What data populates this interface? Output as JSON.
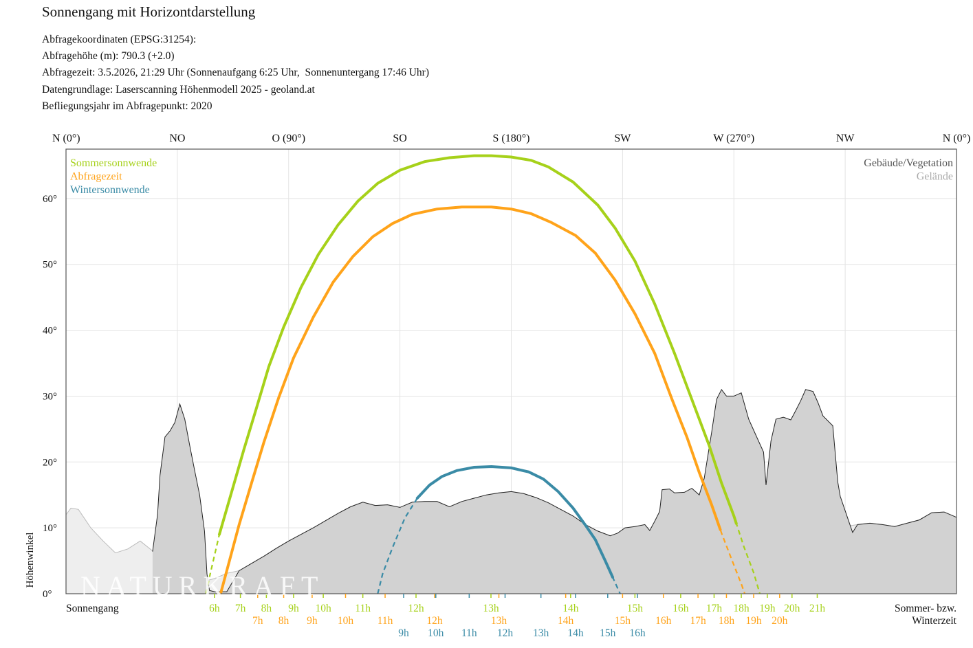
{
  "header": {
    "title": "Sonnengang mit Horizontdarstellung",
    "info_lines": [
      "Abfragekoordinaten (EPSG:31254):",
      "Abfragehöhe (m): 790.3 (+2.0)",
      "Abfragezeit: 3.5.2026, 21:29 Uhr (Sonnenaufgang 6:25 Uhr,  Sonnenuntergang 17:46 Uhr)",
      "Datengrundlage: Laserscanning Höhenmodell 2025 - geoland.at",
      "Befliegungsjahr im Abfragepunkt: 2020"
    ]
  },
  "watermark": "NATURKRAFT",
  "chart_data": {
    "type": "line",
    "xlim": [
      0,
      360
    ],
    "ylim": [
      0,
      67.5
    ],
    "ylabel": "Höhenwinkel",
    "direction_labels": [
      {
        "az": 0,
        "label": "N (0°)"
      },
      {
        "az": 45,
        "label": "NO"
      },
      {
        "az": 90,
        "label": "O (90°)"
      },
      {
        "az": 135,
        "label": "SO"
      },
      {
        "az": 180,
        "label": "S (180°)"
      },
      {
        "az": 225,
        "label": "SW"
      },
      {
        "az": 270,
        "label": "W (270°)"
      },
      {
        "az": 315,
        "label": "NW"
      },
      {
        "az": 360,
        "label": "N (0°)"
      }
    ],
    "y_ticks": [
      {
        "v": 0,
        "label": "0°"
      },
      {
        "v": 10,
        "label": "10°"
      },
      {
        "v": 20,
        "label": "20°"
      },
      {
        "v": 30,
        "label": "30°"
      },
      {
        "v": 40,
        "label": "40°"
      },
      {
        "v": 50,
        "label": "50°"
      },
      {
        "v": 60,
        "label": "60°"
      }
    ],
    "legend_left": [
      {
        "label": "Sommersonnwende",
        "color": "#a6d11a"
      },
      {
        "label": "Abfragezeit",
        "color": "#ffa31a"
      },
      {
        "label": "Wintersonnwende",
        "color": "#3a8ba6"
      }
    ],
    "legend_right": [
      {
        "label": "Gebäude/Vegetation",
        "color": "#555555"
      },
      {
        "label": "Gelände",
        "color": "#aaaaaa"
      }
    ],
    "bottom_left_label": "Sonnengang",
    "bottom_right_label": [
      "Sommer- bzw.",
      "Winterzeit"
    ],
    "terrain": [
      [
        0,
        12
      ],
      [
        2,
        13
      ],
      [
        5,
        12.8
      ],
      [
        10,
        10
      ],
      [
        15,
        8
      ],
      [
        20,
        6.2
      ],
      [
        25,
        6.8
      ],
      [
        30,
        8
      ],
      [
        35,
        6.5
      ],
      [
        40,
        4
      ],
      [
        45,
        2.8
      ],
      [
        50,
        2
      ],
      [
        55,
        1.8
      ],
      [
        60,
        2.3
      ],
      [
        65,
        3.1
      ],
      [
        70,
        3.5
      ],
      [
        75,
        4.6
      ],
      [
        80,
        5.7
      ],
      [
        85,
        6.9
      ],
      [
        90,
        8
      ],
      [
        95,
        9
      ],
      [
        100,
        10
      ],
      [
        105,
        11.1
      ],
      [
        110,
        12.2
      ],
      [
        115,
        13.2
      ],
      [
        120,
        13.9
      ],
      [
        125,
        13.4
      ],
      [
        130,
        13.5
      ],
      [
        135,
        13.1
      ],
      [
        140,
        13.9
      ],
      [
        145,
        14
      ],
      [
        150,
        14
      ],
      [
        155,
        13.2
      ],
      [
        160,
        14
      ],
      [
        165,
        14.5
      ],
      [
        170,
        15
      ],
      [
        175,
        15.3
      ],
      [
        180,
        15.5
      ],
      [
        185,
        15.2
      ],
      [
        190,
        14.6
      ],
      [
        195,
        13.8
      ],
      [
        200,
        12.8
      ],
      [
        205,
        11.8
      ],
      [
        210,
        10.5
      ],
      [
        215,
        9.5
      ],
      [
        220,
        8.8
      ],
      [
        225,
        8
      ],
      [
        230,
        7.2
      ],
      [
        235,
        6.5
      ],
      [
        240,
        6
      ],
      [
        245,
        5.6
      ],
      [
        250,
        5.2
      ],
      [
        255,
        4.8
      ],
      [
        260,
        4.4
      ],
      [
        265,
        4
      ],
      [
        270,
        3.7
      ],
      [
        275,
        3.3
      ],
      [
        280,
        4.8
      ],
      [
        285,
        6.2
      ],
      [
        290,
        7.3
      ],
      [
        295,
        8.1
      ],
      [
        300,
        8.9
      ],
      [
        305,
        9.4
      ],
      [
        310,
        9.9
      ],
      [
        315,
        10.2
      ],
      [
        320,
        10.5
      ],
      [
        325,
        10.7
      ],
      [
        330,
        10.5
      ],
      [
        335,
        10.2
      ],
      [
        340,
        10.7
      ],
      [
        345,
        11.2
      ],
      [
        350,
        12.3
      ],
      [
        355,
        12.4
      ],
      [
        360,
        11.6
      ]
    ],
    "buildings": [
      [
        35,
        6.4
      ],
      [
        37,
        12
      ],
      [
        38,
        18
      ],
      [
        40,
        23.8
      ],
      [
        42,
        24.7
      ],
      [
        44,
        26
      ],
      [
        46,
        28.8
      ],
      [
        48,
        26.5
      ],
      [
        50,
        22.5
      ],
      [
        52,
        18.7
      ],
      [
        54,
        15
      ],
      [
        56,
        9.5
      ],
      [
        57,
        3
      ],
      [
        58,
        0.5
      ],
      [
        60,
        0.3
      ],
      [
        65,
        0.3
      ],
      [
        70,
        3.5
      ],
      [
        75,
        4.6
      ],
      [
        80,
        5.7
      ],
      [
        85,
        6.9
      ],
      [
        90,
        8
      ],
      [
        95,
        9
      ],
      [
        100,
        10
      ],
      [
        105,
        11.1
      ],
      [
        110,
        12.2
      ],
      [
        115,
        13.2
      ],
      [
        120,
        13.9
      ],
      [
        125,
        13.4
      ],
      [
        130,
        13.5
      ],
      [
        135,
        13.1
      ],
      [
        140,
        13.9
      ],
      [
        145,
        14
      ],
      [
        150,
        14
      ],
      [
        155,
        13.2
      ],
      [
        160,
        14
      ],
      [
        165,
        14.5
      ],
      [
        170,
        15
      ],
      [
        175,
        15.3
      ],
      [
        180,
        15.5
      ],
      [
        185,
        15.2
      ],
      [
        190,
        14.6
      ],
      [
        195,
        13.8
      ],
      [
        200,
        12.8
      ],
      [
        205,
        11.8
      ],
      [
        210,
        10.5
      ],
      [
        215,
        9.5
      ],
      [
        220,
        8.8
      ],
      [
        223,
        9.2
      ],
      [
        226,
        10
      ],
      [
        230,
        10.2
      ],
      [
        234,
        10.5
      ],
      [
        236,
        9.6
      ],
      [
        238,
        11
      ],
      [
        240,
        12.5
      ],
      [
        241,
        15.8
      ],
      [
        244,
        15.9
      ],
      [
        246,
        15.3
      ],
      [
        250,
        15.4
      ],
      [
        253,
        16
      ],
      [
        256,
        15
      ],
      [
        258,
        17.5
      ],
      [
        261,
        24.5
      ],
      [
        263,
        29.5
      ],
      [
        265,
        31
      ],
      [
        267,
        30
      ],
      [
        270,
        30
      ],
      [
        273,
        30.5
      ],
      [
        276,
        26.5
      ],
      [
        279,
        24
      ],
      [
        282,
        21.5
      ],
      [
        283,
        16.5
      ],
      [
        285,
        23.2
      ],
      [
        287,
        26.5
      ],
      [
        290,
        26.8
      ],
      [
        293,
        26.4
      ],
      [
        295,
        27.8
      ],
      [
        297,
        29.3
      ],
      [
        299,
        31
      ],
      [
        302,
        30.7
      ],
      [
        304,
        29
      ],
      [
        306,
        27
      ],
      [
        310,
        25.5
      ],
      [
        312,
        17
      ],
      [
        313,
        14.8
      ],
      [
        316,
        11.5
      ],
      [
        318,
        9.3
      ],
      [
        320,
        10.5
      ],
      [
        325,
        10.7
      ],
      [
        330,
        10.5
      ],
      [
        335,
        10.2
      ],
      [
        340,
        10.7
      ],
      [
        345,
        11.2
      ],
      [
        350,
        12.3
      ],
      [
        355,
        12.4
      ],
      [
        360,
        11.6
      ]
    ],
    "series": [
      {
        "name": "Sommersonnwende",
        "color": "#a6d11a",
        "points": [
          [
            56.6,
            0
          ],
          [
            58,
            2.5
          ],
          [
            62,
            9
          ],
          [
            67,
            15.5
          ],
          [
            72,
            22
          ],
          [
            77,
            28.2
          ],
          [
            82,
            34.5
          ],
          [
            88,
            40.5
          ],
          [
            95,
            46.5
          ],
          [
            102,
            51.5
          ],
          [
            110,
            56
          ],
          [
            118,
            59.6
          ],
          [
            126,
            62.3
          ],
          [
            135,
            64.3
          ],
          [
            145,
            65.6
          ],
          [
            155,
            66.2
          ],
          [
            165,
            66.5
          ],
          [
            172,
            66.5
          ],
          [
            180,
            66.3
          ],
          [
            188,
            65.8
          ],
          [
            195,
            64.8
          ],
          [
            205,
            62.5
          ],
          [
            215,
            59
          ],
          [
            222,
            55.5
          ],
          [
            230,
            50.5
          ],
          [
            238,
            44
          ],
          [
            246,
            36.5
          ],
          [
            254,
            28.5
          ],
          [
            260,
            22.5
          ],
          [
            265,
            16.8
          ],
          [
            270,
            11.8
          ],
          [
            274,
            7.2
          ],
          [
            278,
            3.2
          ],
          [
            280.5,
            0
          ]
        ],
        "solid_ranges": [
          [
            62,
            271
          ]
        ]
      },
      {
        "name": "Abfragezeit",
        "color": "#ffa31a",
        "points": [
          [
            62.5,
            0
          ],
          [
            65,
            3.5
          ],
          [
            70,
            10.5
          ],
          [
            75,
            16.8
          ],
          [
            80,
            23
          ],
          [
            86,
            29.8
          ],
          [
            92,
            35.8
          ],
          [
            100,
            42
          ],
          [
            108,
            47.3
          ],
          [
            116,
            51.2
          ],
          [
            124,
            54.2
          ],
          [
            132,
            56.2
          ],
          [
            140,
            57.6
          ],
          [
            150,
            58.4
          ],
          [
            160,
            58.7
          ],
          [
            172,
            58.7
          ],
          [
            180,
            58.4
          ],
          [
            188,
            57.7
          ],
          [
            196,
            56.4
          ],
          [
            206,
            54.4
          ],
          [
            214,
            51.7
          ],
          [
            222,
            47.6
          ],
          [
            230,
            42.5
          ],
          [
            238,
            36.5
          ],
          [
            245,
            29.5
          ],
          [
            251,
            23.8
          ],
          [
            256,
            18.4
          ],
          [
            261,
            13.5
          ],
          [
            265,
            9.2
          ],
          [
            269,
            5.3
          ],
          [
            273,
            1.5
          ],
          [
            274.4,
            0
          ]
        ],
        "solid_ranges": [
          [
            62.5,
            264.5
          ]
        ]
      },
      {
        "name": "Wintersonnwende",
        "color": "#3a8ba6",
        "points": [
          [
            126,
            0
          ],
          [
            128,
            3
          ],
          [
            132,
            7
          ],
          [
            137,
            11.5
          ],
          [
            142,
            14.5
          ],
          [
            147,
            16.5
          ],
          [
            152,
            17.8
          ],
          [
            158,
            18.7
          ],
          [
            165,
            19.2
          ],
          [
            172,
            19.3
          ],
          [
            180,
            19.1
          ],
          [
            187,
            18.5
          ],
          [
            193,
            17.4
          ],
          [
            199,
            15.5
          ],
          [
            205,
            13
          ],
          [
            210,
            10.4
          ],
          [
            214,
            8.2
          ],
          [
            218,
            5
          ],
          [
            221,
            2.5
          ],
          [
            224,
            0
          ]
        ],
        "solid_ranges": [
          [
            142,
            221
          ]
        ]
      }
    ],
    "hour_rows": [
      {
        "color": "#a6d11a",
        "labels": [
          {
            "az": 60,
            "t": "6h"
          },
          {
            "az": 70.5,
            "t": "7h"
          },
          {
            "az": 81,
            "t": "8h"
          },
          {
            "az": 92,
            "t": "9h"
          },
          {
            "az": 104,
            "t": "10h"
          },
          {
            "az": 120,
            "t": "11h"
          },
          {
            "az": 141.5,
            "t": "12h"
          },
          {
            "az": 171.8,
            "t": "13h"
          },
          {
            "az": 204,
            "t": "14h"
          },
          {
            "az": 230,
            "t": "15h"
          },
          {
            "az": 248.5,
            "t": "16h"
          },
          {
            "az": 262,
            "t": "17h"
          },
          {
            "az": 273,
            "t": "18h"
          },
          {
            "az": 283.5,
            "t": "19h"
          },
          {
            "az": 293.5,
            "t": "20h"
          },
          {
            "az": 303.7,
            "t": "21h"
          }
        ]
      },
      {
        "color": "#ffa31a",
        "labels": [
          {
            "az": 77.5,
            "t": "7h"
          },
          {
            "az": 88,
            "t": "8h"
          },
          {
            "az": 99.5,
            "t": "9h"
          },
          {
            "az": 113,
            "t": "10h"
          },
          {
            "az": 129,
            "t": "11h"
          },
          {
            "az": 149,
            "t": "12h"
          },
          {
            "az": 175,
            "t": "13h"
          },
          {
            "az": 202,
            "t": "14h"
          },
          {
            "az": 225,
            "t": "15h"
          },
          {
            "az": 241.5,
            "t": "16h"
          },
          {
            "az": 255.5,
            "t": "17h"
          },
          {
            "az": 267,
            "t": "18h"
          },
          {
            "az": 278,
            "t": "19h"
          },
          {
            "az": 288.5,
            "t": "20h"
          }
        ]
      },
      {
        "color": "#3a8ba6",
        "labels": [
          {
            "az": 136.5,
            "t": "9h"
          },
          {
            "az": 149.5,
            "t": "10h"
          },
          {
            "az": 163,
            "t": "11h"
          },
          {
            "az": 177.5,
            "t": "12h"
          },
          {
            "az": 192,
            "t": "13h"
          },
          {
            "az": 206,
            "t": "14h"
          },
          {
            "az": 219,
            "t": "15h"
          },
          {
            "az": 231,
            "t": "16h"
          }
        ]
      }
    ]
  }
}
